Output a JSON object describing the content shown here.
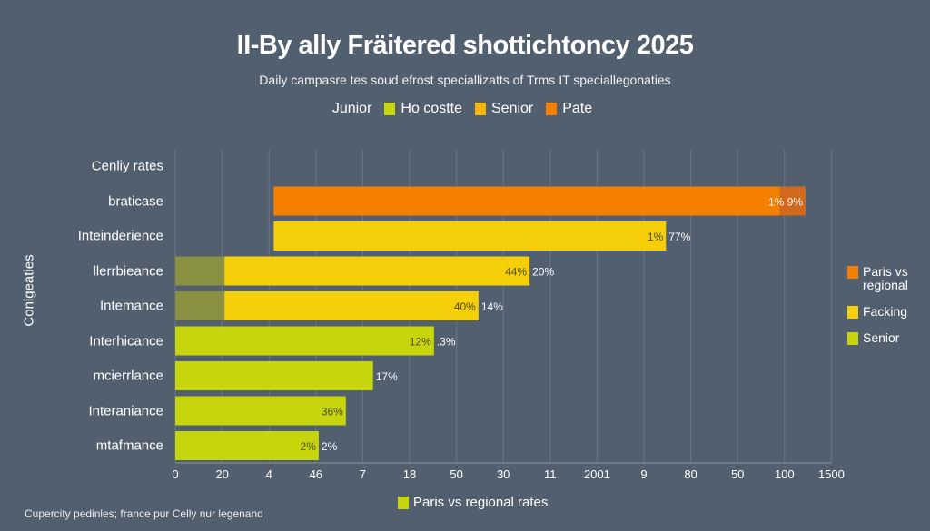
{
  "colors": {
    "background": "#525f6f",
    "grid": "#6b7787",
    "orange": "#f77f00",
    "dark_orange": "#d2691c",
    "yellow": "#f5cf0a",
    "olive": "#8a9042",
    "lime": "#c7d60c"
  },
  "legend_top": [
    {
      "label": "Junior",
      "color": null
    },
    {
      "label": "Ho costte",
      "color": "#c7d60c"
    },
    {
      "label": "Senior",
      "color": "#f5b50a"
    },
    {
      "label": "Pate",
      "color": "#f77f00"
    }
  ],
  "legend_right": [
    {
      "label": "Paris vs regional",
      "color": "#f77f00"
    },
    {
      "label": "Facking",
      "color": "#f5cf0a"
    },
    {
      "label": "Senior",
      "color": "#c7d60c"
    }
  ],
  "legend_bottom": {
    "label": "Paris vs regional rates",
    "color": "#c7d60c"
  },
  "footnote": "Cupercity pedinles; france pur Celly nur legenand",
  "chart_data": {
    "type": "bar",
    "orientation": "horizontal",
    "title": "II-By ally Fräitered shottichtoncy 2025",
    "subtitle": "Daily campasre tes soud efrost speciallizatts of Trms IT speciallegonaties",
    "ylabel": "Conigeaties",
    "x_tick_labels": [
      "0",
      "20",
      "4",
      "46",
      "7",
      "18",
      "50",
      "30",
      "11",
      "2001",
      "9",
      "80",
      "50",
      "100",
      "1500"
    ],
    "grid": true,
    "legend_placement": "top, right and bottom",
    "categories": [
      "Cenliy rates",
      "braticase",
      "Inteinderience",
      "llerrbieance",
      "Intemance",
      "Interhicance",
      "mcierrlance",
      "Interaniance",
      "mtafmance"
    ],
    "bars": [
      {
        "category": "Cenliy rates",
        "segments": [],
        "label_in": "",
        "label_out": ""
      },
      {
        "category": "braticase",
        "segments": [
          {
            "start": 2.1,
            "end": 12.9,
            "color": "#f77f00"
          },
          {
            "start": 12.9,
            "end": 13.45,
            "color": "#d2691c"
          }
        ],
        "label_in": "1% 9%",
        "label_out": ""
      },
      {
        "category": "Inteinderience",
        "segments": [
          {
            "start": 2.1,
            "end": 10.47,
            "color": "#f5cf0a"
          }
        ],
        "label_in": "1%",
        "label_out": "77%"
      },
      {
        "category": "llerrbieance",
        "segments": [
          {
            "start": 0,
            "end": 1.05,
            "color": "#8a9042"
          },
          {
            "start": 1.05,
            "end": 7.56,
            "color": "#f5cf0a"
          }
        ],
        "label_in": "44%",
        "label_out": "20%"
      },
      {
        "category": "Intemance",
        "segments": [
          {
            "start": 0,
            "end": 1.05,
            "color": "#8a9042"
          },
          {
            "start": 1.05,
            "end": 6.47,
            "color": "#f5cf0a"
          }
        ],
        "label_in": "40%",
        "label_out": "14%"
      },
      {
        "category": "Interhicance",
        "segments": [
          {
            "start": 0,
            "end": 5.52,
            "color": "#c7d60c"
          }
        ],
        "label_in": "12%",
        "label_out": ".3%"
      },
      {
        "category": "mcierrlance",
        "segments": [
          {
            "start": 0,
            "end": 4.22,
            "color": "#c7d60c"
          }
        ],
        "label_in": "",
        "label_out": "17%"
      },
      {
        "category": "Interaniance",
        "segments": [
          {
            "start": 0,
            "end": 3.64,
            "color": "#c7d60c"
          }
        ],
        "label_in": "36%",
        "label_out": ""
      },
      {
        "category": "mtafmance",
        "segments": [
          {
            "start": 0,
            "end": 3.06,
            "color": "#c7d60c"
          }
        ],
        "label_in": "2%",
        "label_out": "2%"
      }
    ]
  }
}
